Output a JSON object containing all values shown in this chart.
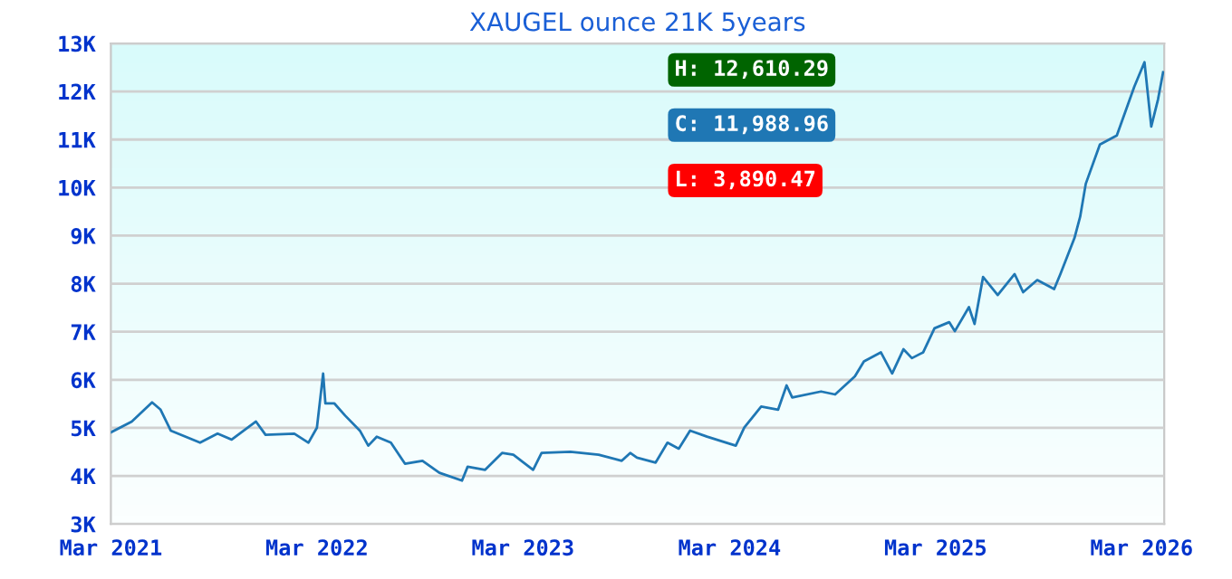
{
  "chart_data": {
    "type": "line",
    "title": "XAUGEL ounce 21K 5years",
    "x": [
      "2021-03-01",
      "2021-04-07",
      "2021-05-13",
      "2021-05-28",
      "2021-06-15",
      "2021-08-06",
      "2021-09-06",
      "2021-10-01",
      "2021-11-13",
      "2021-11-30",
      "2022-01-20",
      "2022-02-14",
      "2022-03-01",
      "2022-03-12",
      "2022-03-16",
      "2022-04-01",
      "2022-04-20",
      "2022-05-16",
      "2022-05-31",
      "2022-06-15",
      "2022-07-10",
      "2022-08-04",
      "2022-09-04",
      "2022-10-04",
      "2022-11-13",
      "2022-11-23",
      "2022-12-24",
      "2023-01-23",
      "2023-02-12",
      "2023-03-19",
      "2023-04-03",
      "2023-05-24",
      "2023-07-13",
      "2023-08-23",
      "2023-09-07",
      "2023-09-19",
      "2023-10-22",
      "2023-11-12",
      "2023-12-02",
      "2023-12-22",
      "2024-01-21",
      "2024-03-12",
      "2024-03-27",
      "2024-04-26",
      "2024-05-26",
      "2024-06-10",
      "2024-06-20",
      "2024-08-10",
      "2024-09-04",
      "2024-10-09",
      "2024-10-25",
      "2024-11-24",
      "2024-12-14",
      "2025-01-03",
      "2025-01-18",
      "2025-02-07",
      "2025-02-27",
      "2025-03-25",
      "2025-04-04",
      "2025-04-29",
      "2025-05-09",
      "2025-05-24",
      "2025-06-19",
      "2025-07-19",
      "2025-08-03",
      "2025-08-28",
      "2025-09-27",
      "2025-10-08",
      "2025-11-02",
      "2025-11-12",
      "2025-11-22",
      "2025-12-17",
      "2026-01-16",
      "2026-02-16",
      "2026-03-06",
      "2026-03-18",
      "2026-03-30",
      "2026-04-08"
    ],
    "series": [
      {
        "color": "#1f77b4",
        "values": [
          4906,
          5132,
          5530,
          5380,
          4944,
          4692,
          4880,
          4756,
          5132,
          4855,
          4880,
          4692,
          5005,
          6132,
          5508,
          5508,
          5256,
          4944,
          4630,
          4817,
          4692,
          4254,
          4316,
          4064,
          3902,
          4192,
          4128,
          4478,
          4440,
          4128,
          4478,
          4504,
          4440,
          4316,
          4478,
          4380,
          4278,
          4692,
          4568,
          4944,
          4817,
          4630,
          5005,
          5444,
          5380,
          5884,
          5632,
          5757,
          5696,
          6072,
          6384,
          6572,
          6132,
          6636,
          6451,
          6572,
          7072,
          7200,
          7012,
          7512,
          7162,
          8140,
          7764,
          8200,
          7824,
          8076,
          7888,
          8200,
          8952,
          9392,
          10080,
          10896,
          11084,
          12100,
          12610,
          11272,
          11836,
          12400
        ]
      }
    ],
    "xlim": [
      "2021-03-01",
      "2026-04-10"
    ],
    "xticks": [
      {
        "value": "2021-03-01",
        "label": "Mar 2021"
      },
      {
        "value": "2022-03-01",
        "label": "Mar 2022"
      },
      {
        "value": "2023-03-01",
        "label": "Mar 2023"
      },
      {
        "value": "2024-03-01",
        "label": "Mar 2024"
      },
      {
        "value": "2025-03-01",
        "label": "Mar 2025"
      },
      {
        "value": "2026-03-01",
        "label": "Mar 2026"
      }
    ],
    "ylim": [
      3000,
      13000
    ],
    "yticks": [
      {
        "value": 3000,
        "label": "3K"
      },
      {
        "value": 4000,
        "label": "4K"
      },
      {
        "value": 5000,
        "label": "5K"
      },
      {
        "value": 6000,
        "label": "6K"
      },
      {
        "value": 7000,
        "label": "7K"
      },
      {
        "value": 8000,
        "label": "8K"
      },
      {
        "value": 9000,
        "label": "9K"
      },
      {
        "value": 10000,
        "label": "10K"
      },
      {
        "value": 11000,
        "label": "11K"
      },
      {
        "value": 12000,
        "label": "12K"
      },
      {
        "value": 13000,
        "label": "13K"
      }
    ],
    "grid": "y",
    "annotations": [
      "H: 12,610.29",
      "C: 11,988.96",
      "L: 3,890.47"
    ]
  }
}
